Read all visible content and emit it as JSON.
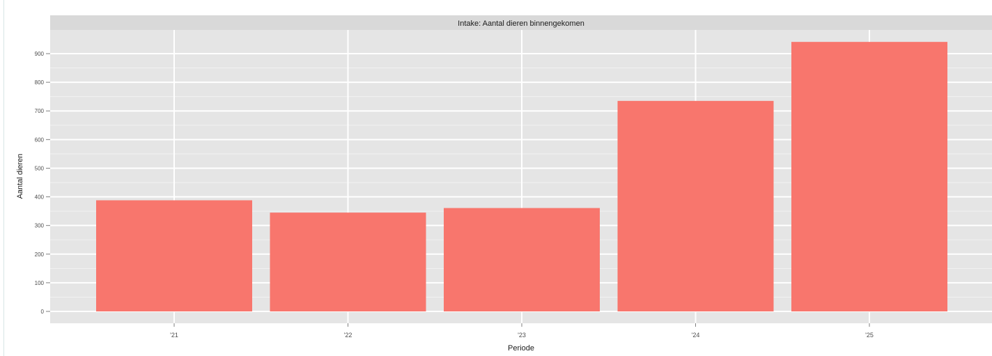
{
  "chart_data": {
    "type": "bar",
    "title": "Intake: Aantal dieren binnengekomen",
    "xlabel": "Periode",
    "ylabel": "Aantal dieren",
    "categories": [
      "'21",
      "'22",
      "'23",
      "'24",
      "'25"
    ],
    "values": [
      388,
      345,
      361,
      735,
      941
    ],
    "ylim": [
      -40,
      1000
    ],
    "yticks": [
      0,
      100,
      200,
      300,
      400,
      500,
      600,
      700,
      800,
      900
    ],
    "ytick_labels": [
      "0",
      "100",
      "200",
      "300",
      "400",
      "500",
      "600",
      "700",
      "800",
      "900"
    ],
    "grid": true,
    "legend": "none",
    "bar_color": "#f8766d",
    "panel_color": "#e5e5e5",
    "strip_color": "#d9d9d9"
  }
}
